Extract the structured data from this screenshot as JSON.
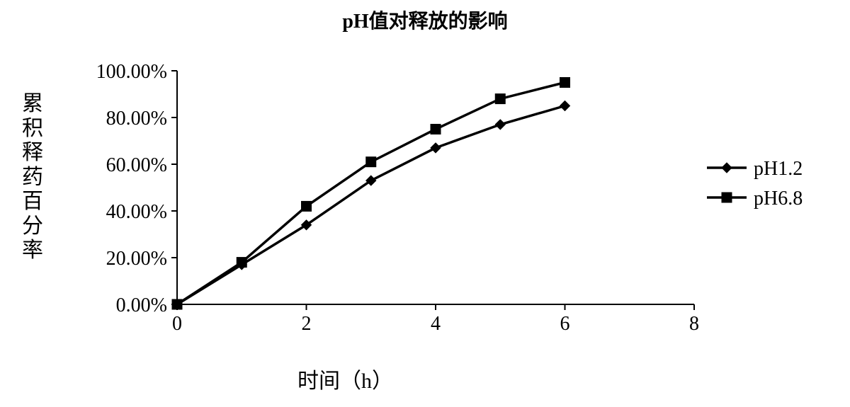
{
  "chart": {
    "type": "line",
    "title": "pH值对释放的影响",
    "title_fontsize": 28,
    "xlabel": "时间（h）",
    "ylabel": "累积释药百分率",
    "label_fontsize": 30,
    "tick_fontsize": 28,
    "font_family": "SimSun",
    "background_color": "#ffffff",
    "text_color": "#000000",
    "axis_color": "#000000",
    "xlim": [
      0,
      8
    ],
    "ylim": [
      0,
      1.0
    ],
    "xtick_step": 2,
    "xticks": [
      0,
      2,
      4,
      6,
      8
    ],
    "ytick_step": 0.2,
    "ytick_labels": [
      "0.00%",
      "20.00%",
      "40.00%",
      "60.00%",
      "80.00%",
      "100.00%"
    ],
    "yticks": [
      0,
      0.2,
      0.4,
      0.6,
      0.8,
      1.0
    ],
    "grid": false,
    "tick_length": 8,
    "axis_line_width": 2,
    "series_line_width": 3.5,
    "marker_size": 14,
    "series": [
      {
        "name": "pH1.2",
        "marker": "diamond",
        "color": "#000000",
        "x": [
          0,
          1,
          2,
          3,
          4,
          5,
          6
        ],
        "y": [
          0.0,
          0.17,
          0.34,
          0.53,
          0.67,
          0.77,
          0.85
        ]
      },
      {
        "name": "pH6.8",
        "marker": "square",
        "color": "#000000",
        "x": [
          0,
          1,
          2,
          3,
          4,
          5,
          6
        ],
        "y": [
          0.0,
          0.18,
          0.42,
          0.61,
          0.75,
          0.88,
          0.95
        ]
      }
    ],
    "legend": {
      "position": "right",
      "fontsize": 28,
      "line_length": 56,
      "marker_inline": true
    }
  }
}
